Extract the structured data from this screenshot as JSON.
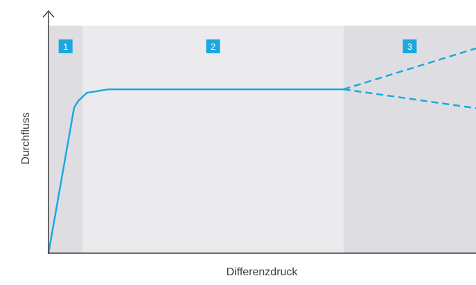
{
  "chart_data": {
    "type": "line",
    "xlabel": "Differenzdruck",
    "ylabel": "Durchfluss",
    "axis_ticks": false,
    "grid": false,
    "colors": {
      "line": "#1ba8e0",
      "zone_1": "#dedee2",
      "zone_2": "#ebebee",
      "zone_3": "#dedee2",
      "badge": "#1ba8e0",
      "axis": "#3c3c3c",
      "text": "#3c3c3c"
    },
    "zones": [
      {
        "label": "1",
        "x_start": 0,
        "x_end": 8
      },
      {
        "label": "2",
        "x_start": 8,
        "x_end": 69
      },
      {
        "label": "3",
        "x_start": 69,
        "x_end": 100
      }
    ],
    "series": [
      {
        "style": "solid",
        "points": [
          [
            0,
            0
          ],
          [
            6,
            64
          ],
          [
            7,
            67
          ],
          [
            9,
            70.5
          ],
          [
            14,
            72
          ],
          [
            69,
            72
          ]
        ]
      },
      {
        "style": "dashed",
        "points": [
          [
            69,
            72
          ],
          [
            100,
            90
          ]
        ]
      },
      {
        "style": "dashed",
        "points": [
          [
            69,
            72
          ],
          [
            100,
            63.7
          ]
        ]
      }
    ]
  }
}
